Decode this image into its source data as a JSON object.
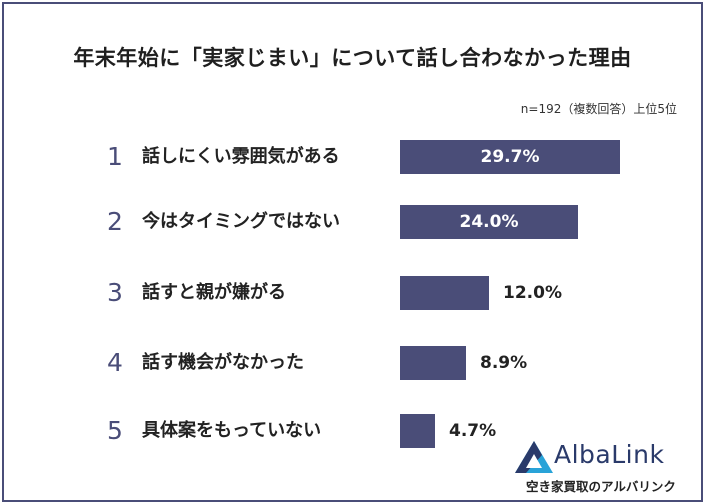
{
  "chart_data": {
    "type": "bar",
    "orientation": "horizontal",
    "title": "年末年始に「実家じまい」について話し合わなかった理由",
    "note": "n=192（複数回答）上位5位",
    "categories": [
      "話しにくい雰囲気がある",
      "今はタイミングではない",
      "話すと親が嫌がる",
      "話す機会がなかった",
      "具体案をもっていない"
    ],
    "ranks": [
      "1",
      "2",
      "3",
      "4",
      "5"
    ],
    "values": [
      29.7,
      24.0,
      12.0,
      8.9,
      4.7
    ],
    "value_labels": [
      "29.7%",
      "24.0%",
      "12.0%",
      "8.9%",
      "4.7%"
    ],
    "grid": false,
    "legend": "none",
    "bar_color": "#4a4d78"
  },
  "logo": {
    "name": "AlbaLink",
    "subtitle": "空き家買取のアルバリンク",
    "colors": [
      "#29a3d8",
      "#2a3a6a"
    ]
  }
}
